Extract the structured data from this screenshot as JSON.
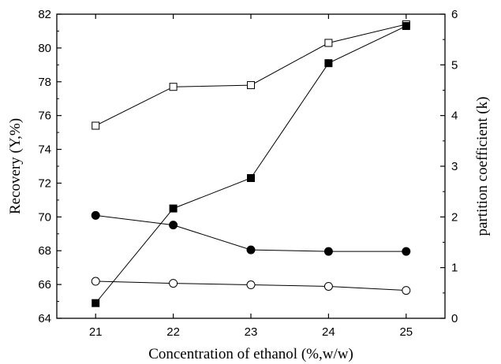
{
  "chart_data": {
    "type": "line",
    "xlabel": "Concentration of ethanol (%,w/w)",
    "ylabel": "Recovery (Y,%)",
    "y2label": "partition coefficient (k)",
    "x": [
      21,
      22,
      23,
      24,
      25
    ],
    "xlim": [
      20.5,
      25.5
    ],
    "ylim": [
      64,
      82
    ],
    "y2lim": [
      0,
      6
    ],
    "x_ticks": [
      "21",
      "22",
      "23",
      "24",
      "25"
    ],
    "y_ticks": [
      "64",
      "66",
      "68",
      "70",
      "72",
      "74",
      "76",
      "78",
      "80",
      "82"
    ],
    "y2_ticks": [
      "0",
      "1",
      "2",
      "3",
      "4",
      "5",
      "6"
    ],
    "grid": false,
    "series": [
      {
        "marker": "open-square",
        "axis": "left",
        "values": [
          75.4,
          77.7,
          77.8,
          80.3,
          81.4
        ]
      },
      {
        "marker": "filled-square",
        "axis": "left",
        "values": [
          64.9,
          70.5,
          72.3,
          79.1,
          81.3
        ]
      },
      {
        "marker": "filled-circle",
        "axis": "right",
        "values": [
          2.03,
          1.84,
          1.35,
          1.32,
          1.32
        ]
      },
      {
        "marker": "open-circle",
        "axis": "right",
        "values": [
          0.73,
          0.69,
          0.66,
          0.63,
          0.55
        ]
      }
    ]
  }
}
